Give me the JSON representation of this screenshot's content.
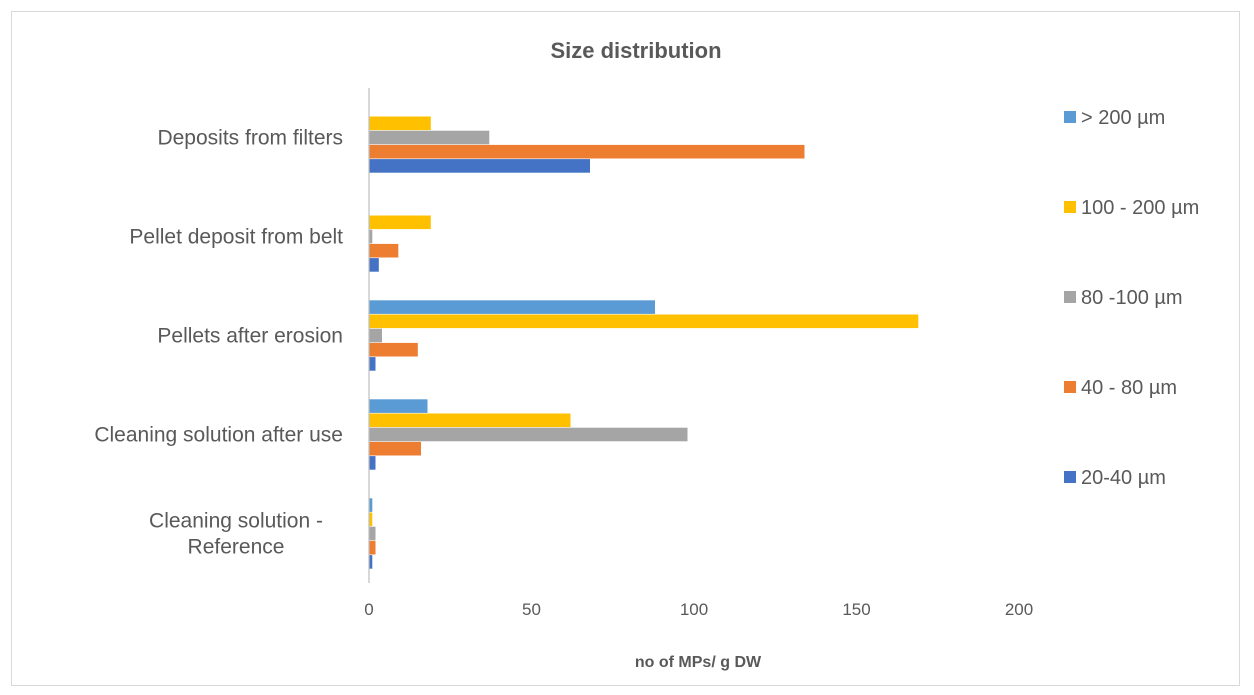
{
  "chart_data": {
    "type": "bar",
    "orientation": "horizontal",
    "title": "Size distribution",
    "xlabel": "no of MPs/ g DW",
    "ylabel": "",
    "xlim": [
      0,
      200
    ],
    "xticks": [
      "0",
      "50",
      "100",
      "150",
      "200"
    ],
    "grid": false,
    "legend_position": "right",
    "categories": [
      [
        "Cleaning solution -",
        "Reference"
      ],
      [
        "Cleaning solution after use"
      ],
      [
        "Pellets after erosion"
      ],
      [
        "Pellet deposit from belt"
      ],
      [
        "Deposits from filters"
      ]
    ],
    "series": [
      {
        "name": "20-40 µm",
        "color": "#4472c4",
        "values": [
          1,
          2,
          2,
          3,
          68
        ]
      },
      {
        "name": "40 - 80 µm",
        "color": "#ed7d31",
        "values": [
          2,
          16,
          15,
          9,
          134
        ]
      },
      {
        "name": "80 -100 µm",
        "color": "#a5a5a5",
        "values": [
          2,
          98,
          4,
          1,
          37
        ]
      },
      {
        "name": "100 - 200 µm",
        "color": "#ffc000",
        "values": [
          1,
          62,
          169,
          19,
          19
        ]
      },
      {
        "name": "> 200 µm",
        "color": "#5b9bd5",
        "values": [
          1,
          18,
          88,
          0,
          0
        ]
      }
    ],
    "legend_order": [
      "> 200 µm",
      "100 - 200 µm",
      "80 -100 µm",
      "40 - 80 µm",
      "20-40 µm"
    ]
  }
}
